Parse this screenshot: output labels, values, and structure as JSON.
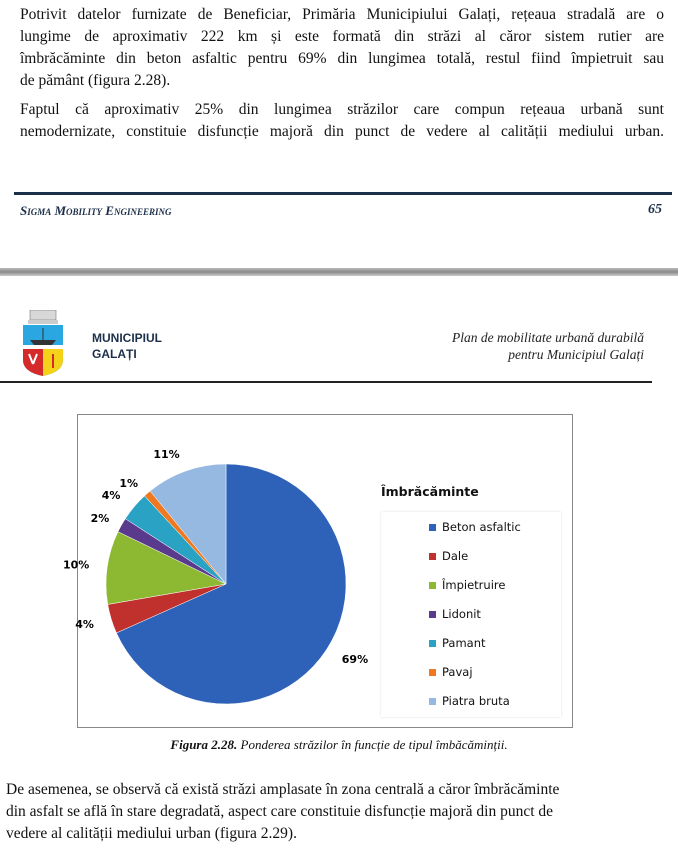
{
  "top_text": {
    "p1": [
      "Potrivit datelor furnizate de Beneficiar, Primăria Municipiului Galați, rețeaua stradală are o",
      "lungime de aproximativ 222 km și este formată din străzi al căror sistem rutier are",
      "îmbrăcăminte din beton asfaltic pentru 69% din lungimea totală, restul fiind împietruit sau",
      "de pământ (figura 2.28)."
    ],
    "p2": [
      "Faptul că aproximativ 25% din lungimea străzilor care compun rețeaua urbană sunt",
      "nemodernizate, constituie disfuncție majoră din punct de vedere al calității mediului urban."
    ]
  },
  "footer": {
    "company": "Sigma Mobility Engineering",
    "page_number": "65"
  },
  "header": {
    "municipality": [
      "MUNICIPIUL",
      "GALAȚI"
    ],
    "plan_title": [
      "Plan de mobilitate urbană durabilă",
      "pentru Municipiul Galați"
    ]
  },
  "chart_data": {
    "type": "pie",
    "legend_title": "Îmbrăcăminte",
    "legend_position": "right",
    "categories": [
      "Beton asfaltic",
      "Dale",
      "Împietruire",
      "Lidonit",
      "Pamant",
      "Pavaj",
      "Piatra bruta"
    ],
    "values": [
      69,
      4,
      10,
      2,
      4,
      1,
      11
    ],
    "labels": [
      "69%",
      "4%",
      "10%",
      "2%",
      "4%",
      "1%",
      "11%"
    ],
    "colors": [
      "#2E62B8",
      "#C0302C",
      "#8DB832",
      "#5A3A8C",
      "#2AA2C4",
      "#F07820",
      "#96B9E2"
    ]
  },
  "caption": {
    "label": "Figura 2.28.",
    "text": " Ponderea străzilor în funcție de tipul îmbăcăminții."
  },
  "bottom_text": [
    "De asemenea, se observă că există străzi amplasate în  zona centrală a căror îmbrăcăminte",
    "din asfalt se află în stare degradată, aspect care constituie disfuncție majoră din punct de",
    "vedere al calității mediului urban (figura 2.29)."
  ]
}
